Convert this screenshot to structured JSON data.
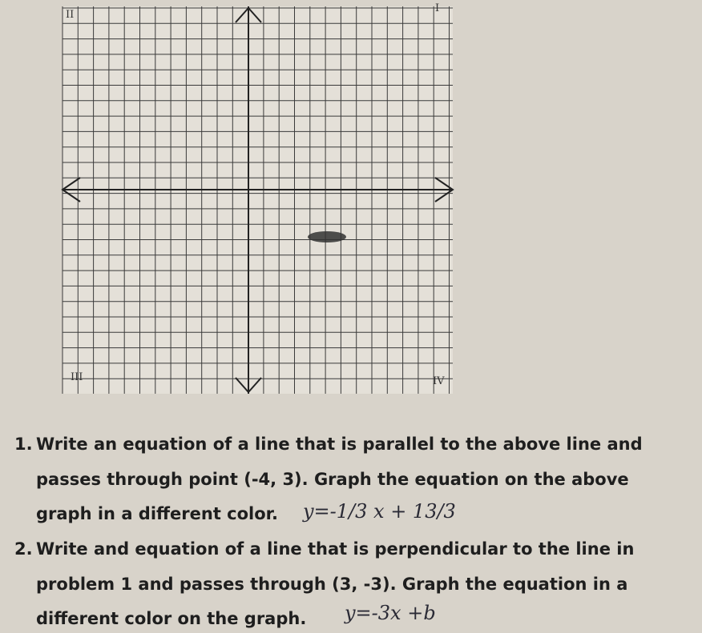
{
  "graph": {
    "quadrants": [
      "II",
      "I",
      "III",
      "IV"
    ]
  },
  "questions": [
    {
      "number": "1.",
      "lines": [
        "Write an equation of a line that is parallel to the above line and",
        "passes through point (-4, 3). Graph the equation on the above",
        "graph in a different color."
      ],
      "answer": "y=-1/3 x + 13/3"
    },
    {
      "number": "2.",
      "lines": [
        "Write and equation of a line that is perpendicular to the line in",
        "problem 1 and passes through (3, -3). Graph the equation in a",
        "different color on the graph."
      ],
      "answer": "y=-3x +b"
    }
  ]
}
